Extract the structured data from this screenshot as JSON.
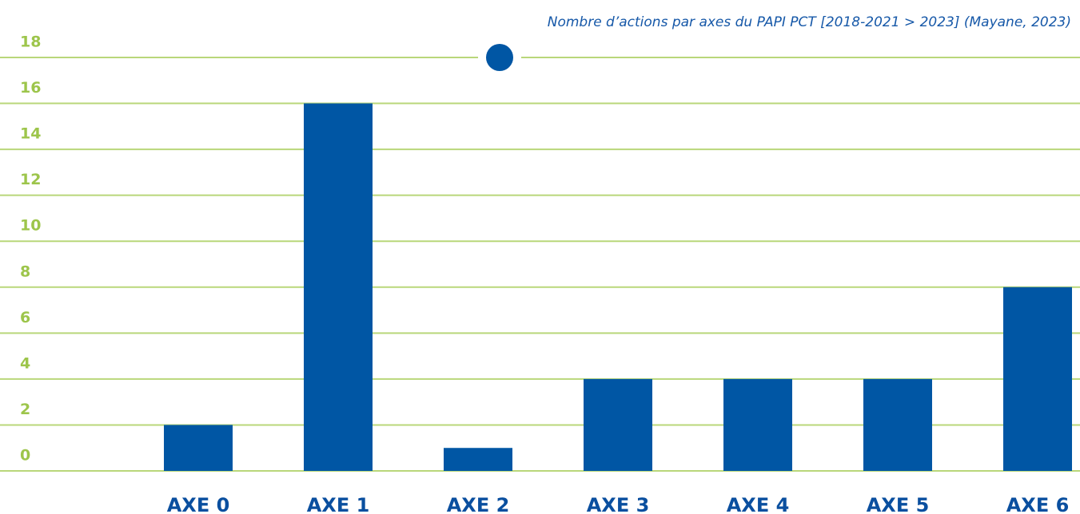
{
  "chart_data": {
    "type": "bar",
    "title": "Nombre d’actions par axes du PAPI PCT [2018-2021 > 2023] (Mayane, 2023)",
    "categories": [
      "AXE 0",
      "AXE 1",
      "AXE 2",
      "AXE 3",
      "AXE 4",
      "AXE 5",
      "AXE 6"
    ],
    "values": [
      2,
      16,
      1,
      4,
      4,
      4,
      8
    ],
    "color": "#0056a4",
    "ylim": [
      0,
      18
    ],
    "yticks": [
      0,
      2,
      4,
      6,
      8,
      10,
      12,
      14,
      16,
      18
    ],
    "grid": true,
    "grid_color": "#b9d77a"
  }
}
